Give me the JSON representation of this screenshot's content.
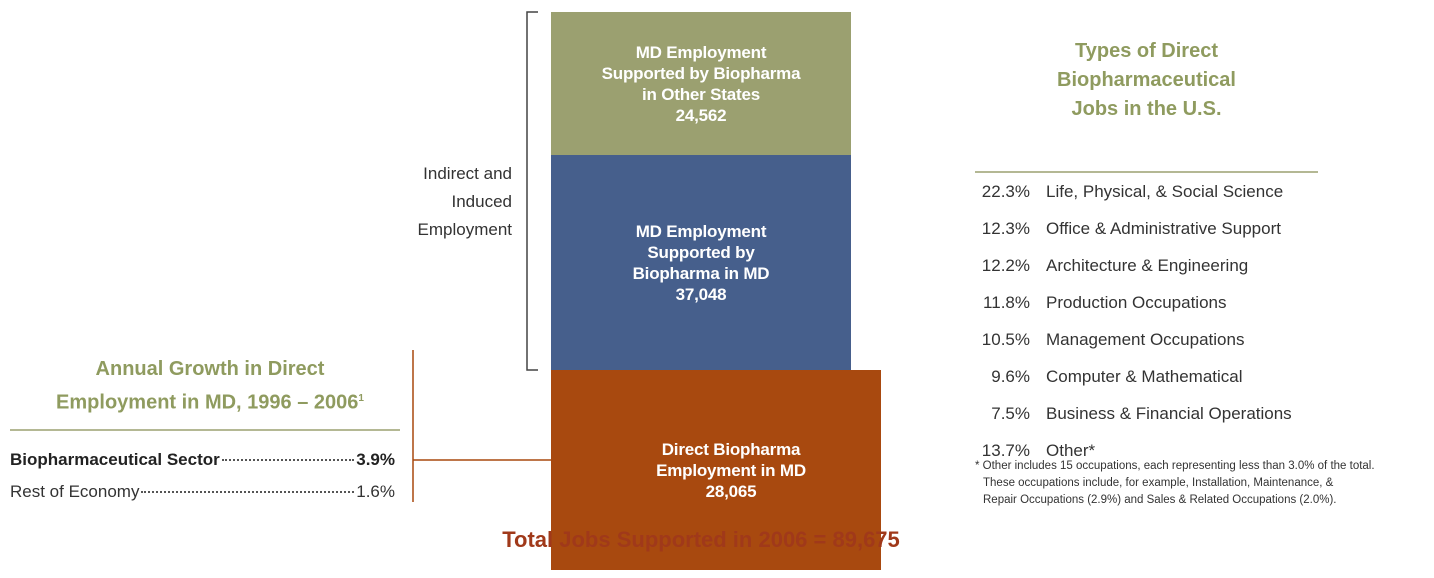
{
  "stack": {
    "segments": [
      {
        "lines": [
          "MD Employment",
          "Supported by Biopharma",
          "in Other States"
        ],
        "value": "24,562",
        "color": "#9ba070"
      },
      {
        "lines": [
          "MD Employment",
          "Supported by",
          "Biopharma in MD"
        ],
        "value": "37,048",
        "color": "#465f8c"
      },
      {
        "lines": [
          "Direct Biopharma",
          "Employment in MD"
        ],
        "value": "28,065",
        "color": "#a8490f"
      }
    ]
  },
  "bracket_label": [
    "Indirect and",
    "Induced",
    "Employment"
  ],
  "growth": {
    "title": [
      "Annual Growth in Direct",
      "Employment in MD, 1996 – 2006"
    ],
    "footnote": "1",
    "rows": [
      {
        "label": "Biopharmaceutical Sector",
        "value": "3.9%"
      },
      {
        "label": "Rest of Economy",
        "value": "1.6%"
      }
    ]
  },
  "jobs": {
    "title": [
      "Types of Direct",
      "Biopharmaceutical",
      "Jobs in the U.S."
    ],
    "rows": [
      {
        "percent": "22.3%",
        "label": "Life, Physical, & Social Science"
      },
      {
        "percent": "12.3%",
        "label": "Office & Administrative Support"
      },
      {
        "percent": "12.2%",
        "label": "Architecture & Engineering"
      },
      {
        "percent": "11.8%",
        "label": "Production Occupations"
      },
      {
        "percent": "10.5%",
        "label": "Management Occupations"
      },
      {
        "percent": "9.6%",
        "label": "Computer & Mathematical"
      },
      {
        "percent": "7.5%",
        "label": "Business & Financial Operations"
      },
      {
        "percent": "13.7%",
        "label": "Other*"
      }
    ],
    "note": [
      "* Other includes 15 occupations, each representing less than 3.0% of the total.",
      "These occupations include, for example, Installation, Maintenance, &",
      "Repair Occupations (2.9%) and Sales & Related Occupations (2.0%)."
    ]
  },
  "total": "Total Jobs Supported in 2006 = 89,675"
}
